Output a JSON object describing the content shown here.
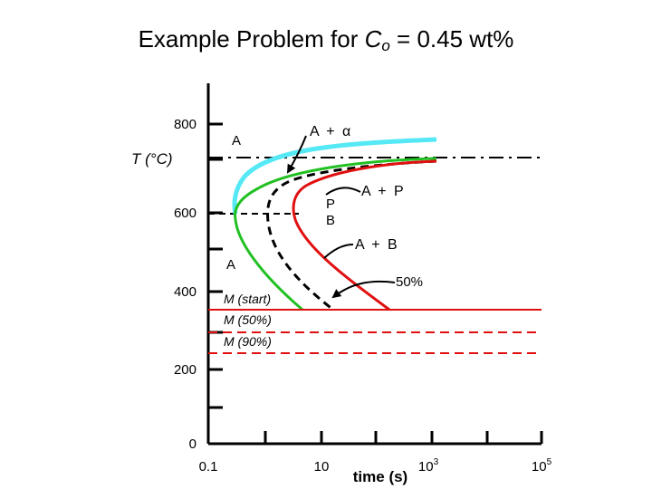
{
  "title": {
    "prefix": "Example Problem for ",
    "var": "C",
    "sub": "o",
    "suffix": " = 0.45 wt%"
  },
  "y_axis": {
    "label": "T (°C)",
    "ticks": [
      "800",
      "600",
      "400",
      "200",
      "0"
    ]
  },
  "x_axis": {
    "label": "time (s)",
    "ticks": [
      {
        "base": "0.1",
        "exp": ""
      },
      {
        "base": "10",
        "exp": ""
      },
      {
        "base": "10",
        "exp": "3"
      },
      {
        "base": "10",
        "exp": "5"
      }
    ]
  },
  "labels": {
    "a_top": "A",
    "a_alpha": "A + α",
    "p": "P",
    "b": "B",
    "a_p": "A + P",
    "a_b": "A + B",
    "a_mid": "A",
    "fifty": "50%",
    "m_start": "M (start)",
    "m_50": "M (50%)",
    "m_90": "M (90%)"
  },
  "colors": {
    "cyan": "#55e8f5",
    "green": "#22c022",
    "red": "#e01010",
    "black": "#000000"
  }
}
